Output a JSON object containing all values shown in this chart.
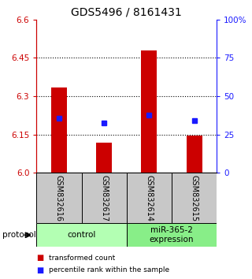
{
  "title": "GDS5496 / 8161431",
  "samples": [
    "GSM832616",
    "GSM832617",
    "GSM832614",
    "GSM832615"
  ],
  "bar_values": [
    6.335,
    6.12,
    6.48,
    6.145
  ],
  "bar_base": 6.0,
  "percentile_values": [
    6.215,
    6.195,
    6.225,
    6.205
  ],
  "ylim_left": [
    6.0,
    6.6
  ],
  "yticks_left": [
    6.0,
    6.15,
    6.3,
    6.45,
    6.6
  ],
  "yticks_right": [
    0,
    25,
    50,
    75,
    100
  ],
  "bar_color": "#cc0000",
  "blue_color": "#1a1aff",
  "gray_color": "#c8c8c8",
  "groups": [
    {
      "label": "control",
      "samples": [
        0,
        1
      ],
      "color": "#b3ffb3"
    },
    {
      "label": "miR-365-2\nexpression",
      "samples": [
        2,
        3
      ],
      "color": "#88ee88"
    }
  ],
  "protocol_label": "protocol",
  "legend_bar_label": "transformed count",
  "legend_pct_label": "percentile rank within the sample",
  "title_fontsize": 10,
  "tick_fontsize": 7.5,
  "label_fontsize": 8,
  "sample_label_fontsize": 7
}
